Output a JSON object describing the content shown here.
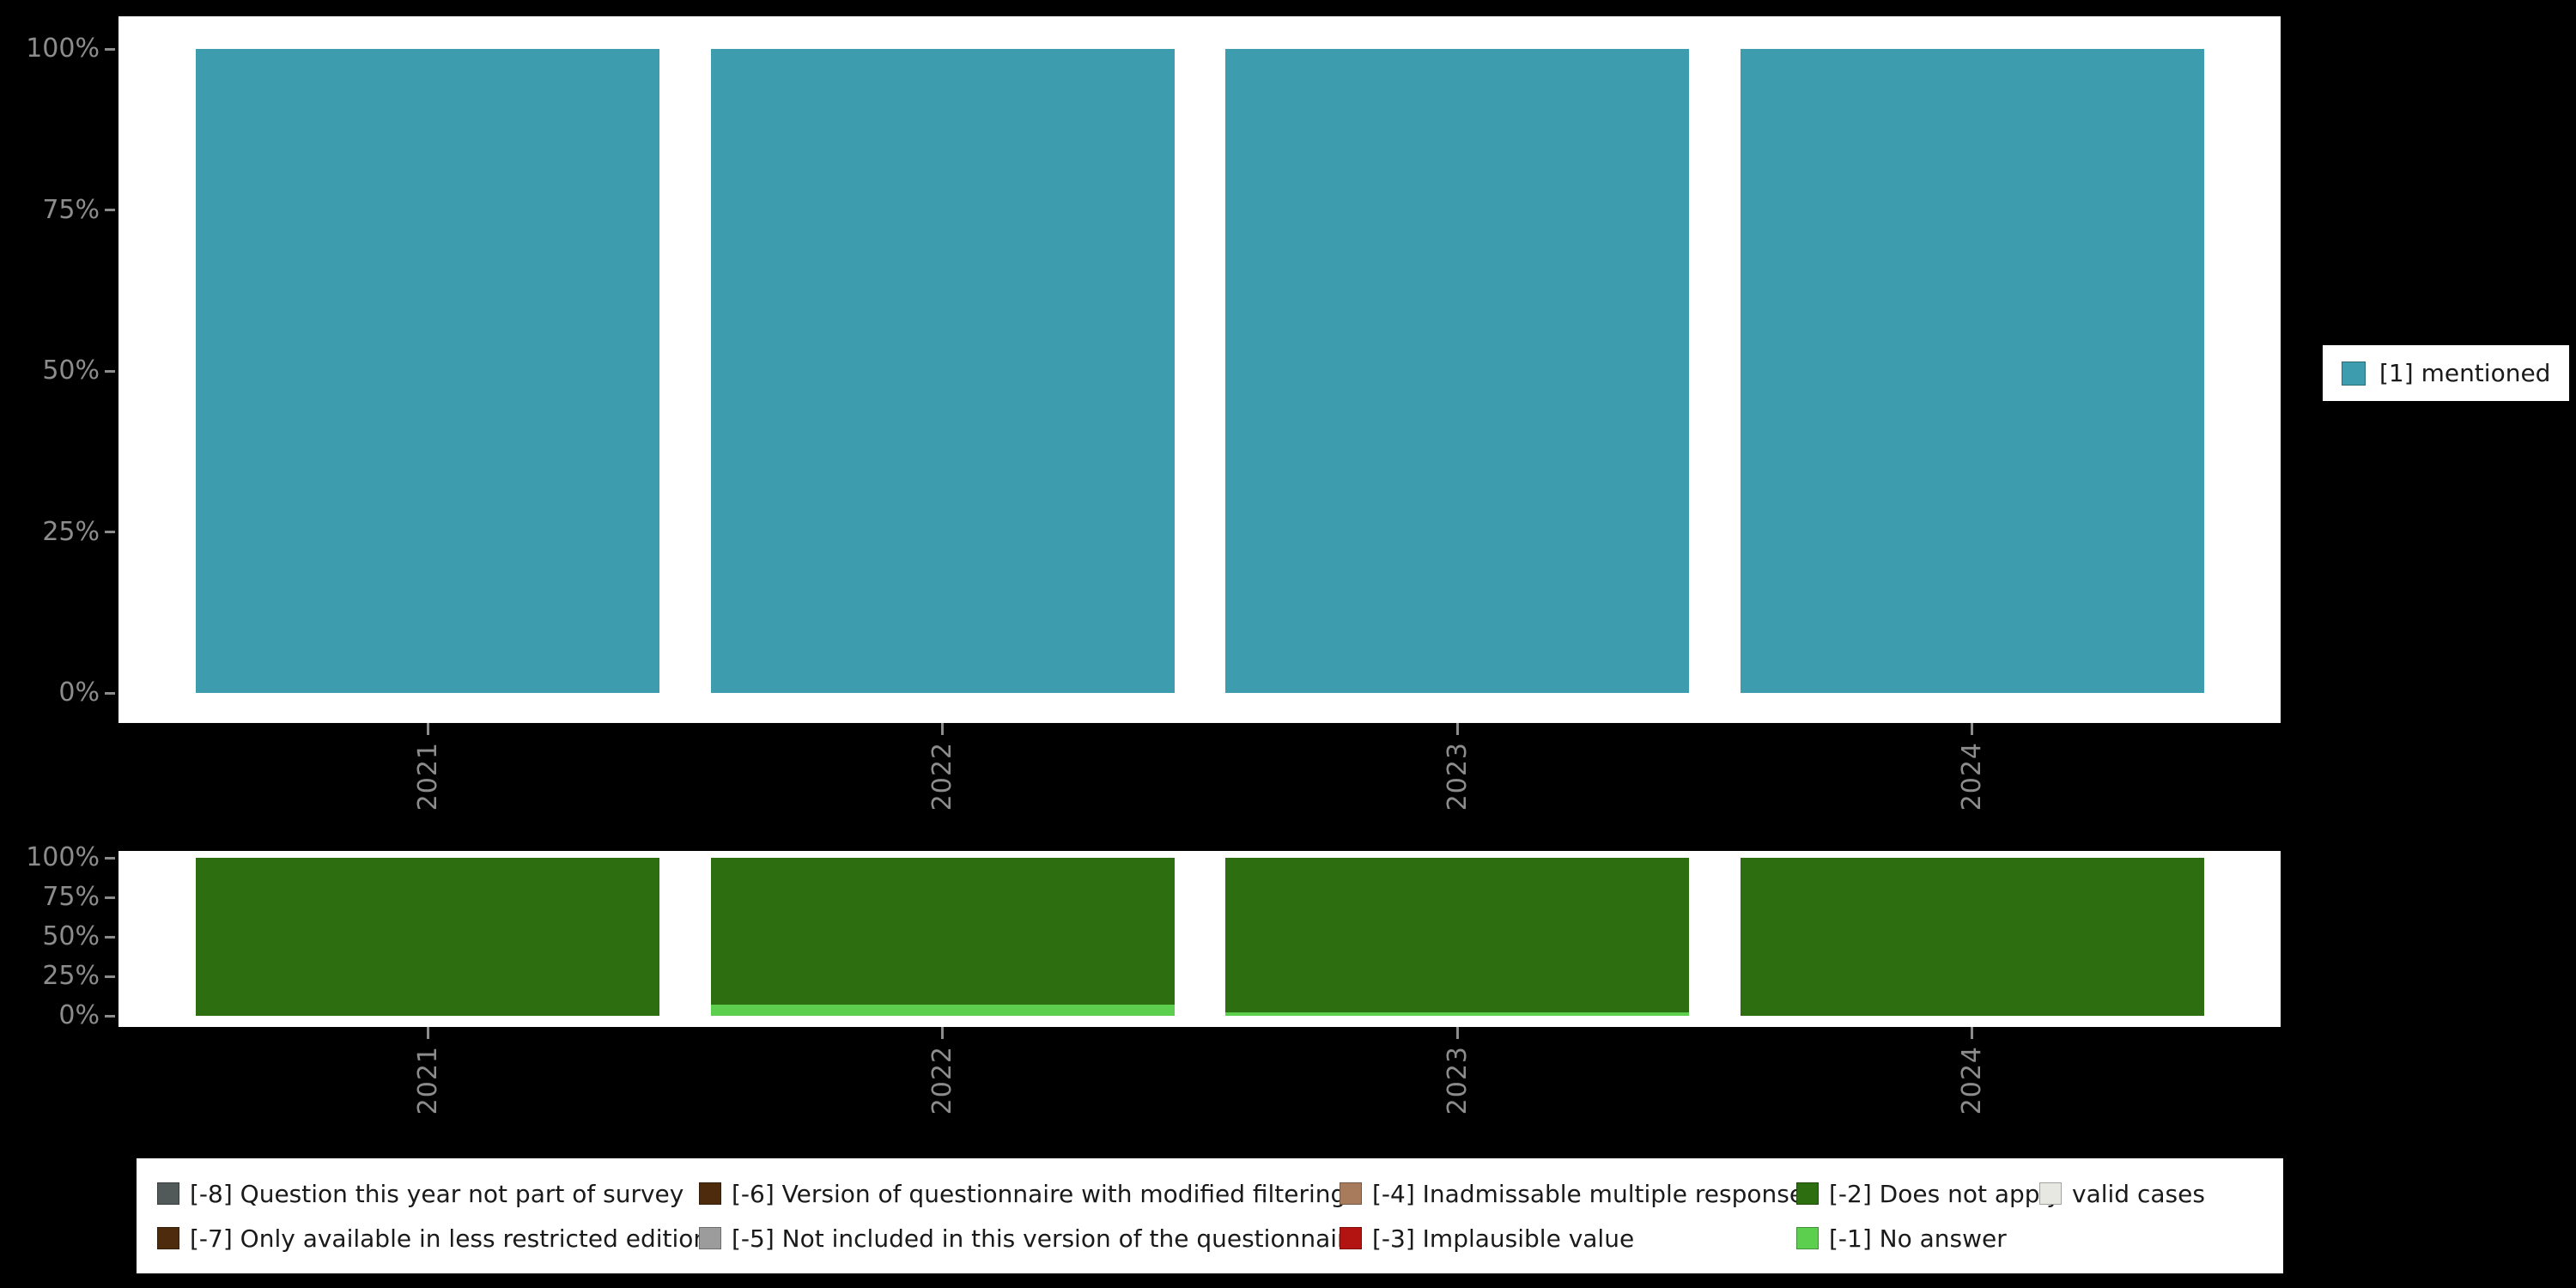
{
  "page": {
    "background": "#000000"
  },
  "axis": {
    "tick_label_color": "#8c8c8c"
  },
  "right_legend": {
    "items": [
      {
        "label": "[1] mentioned",
        "color": "#3d9cae"
      }
    ]
  },
  "missing_legend": {
    "rows": [
      [
        {
          "label": "[-8] Question this year not part of survey",
          "color": "#515a58"
        },
        {
          "label": "[-6] Version of questionnaire with modified filtering",
          "color": "#4e2b0d"
        },
        {
          "label": "[-4] Inadmissable multiple response",
          "color": "#a87b5c"
        },
        {
          "label": "[-2] Does not apply",
          "color": "#2d6e11"
        },
        {
          "label": "valid cases",
          "color": "#e8e8e2"
        }
      ],
      [
        {
          "label": "[-7] Only available in less restricted edition",
          "color": "#4e2b0d"
        },
        {
          "label": "[-5] Not included in this version of the questionnaire",
          "color": "#9c9c9c"
        },
        {
          "label": "[-3] Implausible value",
          "color": "#b31412"
        },
        {
          "label": "[-1] No answer",
          "color": "#5ccf4f"
        }
      ]
    ]
  },
  "chart_data": [
    {
      "type": "bar",
      "stacked": true,
      "orientation": "vertical",
      "title": "",
      "xlabel": "",
      "ylabel": "",
      "categories": [
        "2021",
        "2022",
        "2023",
        "2024"
      ],
      "series": [
        {
          "name": "[1] mentioned",
          "color": "#3d9cae",
          "values": [
            100,
            100,
            100,
            100
          ]
        }
      ],
      "ylim": [
        0,
        100
      ],
      "y_ticks": [
        "0%",
        "25%",
        "50%",
        "75%",
        "100%"
      ],
      "grid": false,
      "legend_position": "right",
      "x_tick_rotation": 90
    },
    {
      "type": "bar",
      "stacked": true,
      "orientation": "vertical",
      "title": "",
      "xlabel": "",
      "ylabel": "",
      "categories": [
        "2021",
        "2022",
        "2023",
        "2024"
      ],
      "series": [
        {
          "name": "[-1] No answer",
          "color": "#5ccf4f",
          "values": [
            0,
            7,
            2,
            0
          ]
        },
        {
          "name": "[-2] Does not apply",
          "color": "#2d6e11",
          "values": [
            100,
            93,
            98,
            100
          ]
        }
      ],
      "stack_order": "first-series-at-bottom",
      "ylim": [
        0,
        100
      ],
      "y_ticks": [
        "0%",
        "25%",
        "50%",
        "75%",
        "100%"
      ],
      "grid": false,
      "legend_position": "bottom",
      "x_tick_rotation": 90
    }
  ]
}
